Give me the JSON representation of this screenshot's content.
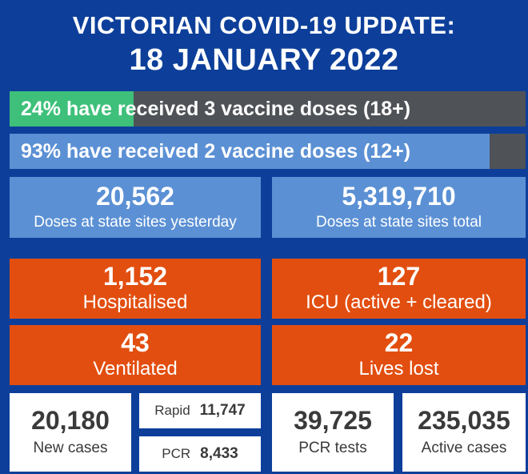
{
  "title": {
    "line1": "VICTORIAN COVID-19 UPDATE:",
    "line2": "18 JANUARY 2022"
  },
  "vaccination": {
    "three_doses": {
      "text": "24% have received 3 vaccine doses (18+)",
      "percent": 24
    },
    "two_doses": {
      "text": "93% have received 2 vaccine doses (12+)",
      "percent": 93
    }
  },
  "doses": {
    "yesterday": {
      "value": "20,562",
      "label": "Doses at state sites yesterday"
    },
    "total": {
      "value": "5,319,710",
      "label": "Doses at state sites total"
    }
  },
  "hospital": {
    "hospitalised": {
      "value": "1,152",
      "label": "Hospitalised"
    },
    "icu": {
      "value": "127",
      "label": "ICU (active + cleared)"
    },
    "ventilated": {
      "value": "43",
      "label": "Ventilated"
    },
    "lives_lost": {
      "value": "22",
      "label": "Lives lost"
    }
  },
  "cases": {
    "new_cases": {
      "value": "20,180",
      "label": "New cases"
    },
    "rapid": {
      "label": "Rapid",
      "value": "11,747"
    },
    "pcr": {
      "label": "PCR",
      "value": "8,433"
    },
    "pcr_tests": {
      "value": "39,725",
      "label": "PCR tests"
    },
    "active_cases": {
      "value": "235,035",
      "label": "Active cases"
    }
  },
  "colors": {
    "background": "#0d3f9a",
    "green": "#3ec07a",
    "blue_box": "#5b90d4",
    "orange_box": "#e24e0f",
    "bar_track": "#4f5257"
  }
}
